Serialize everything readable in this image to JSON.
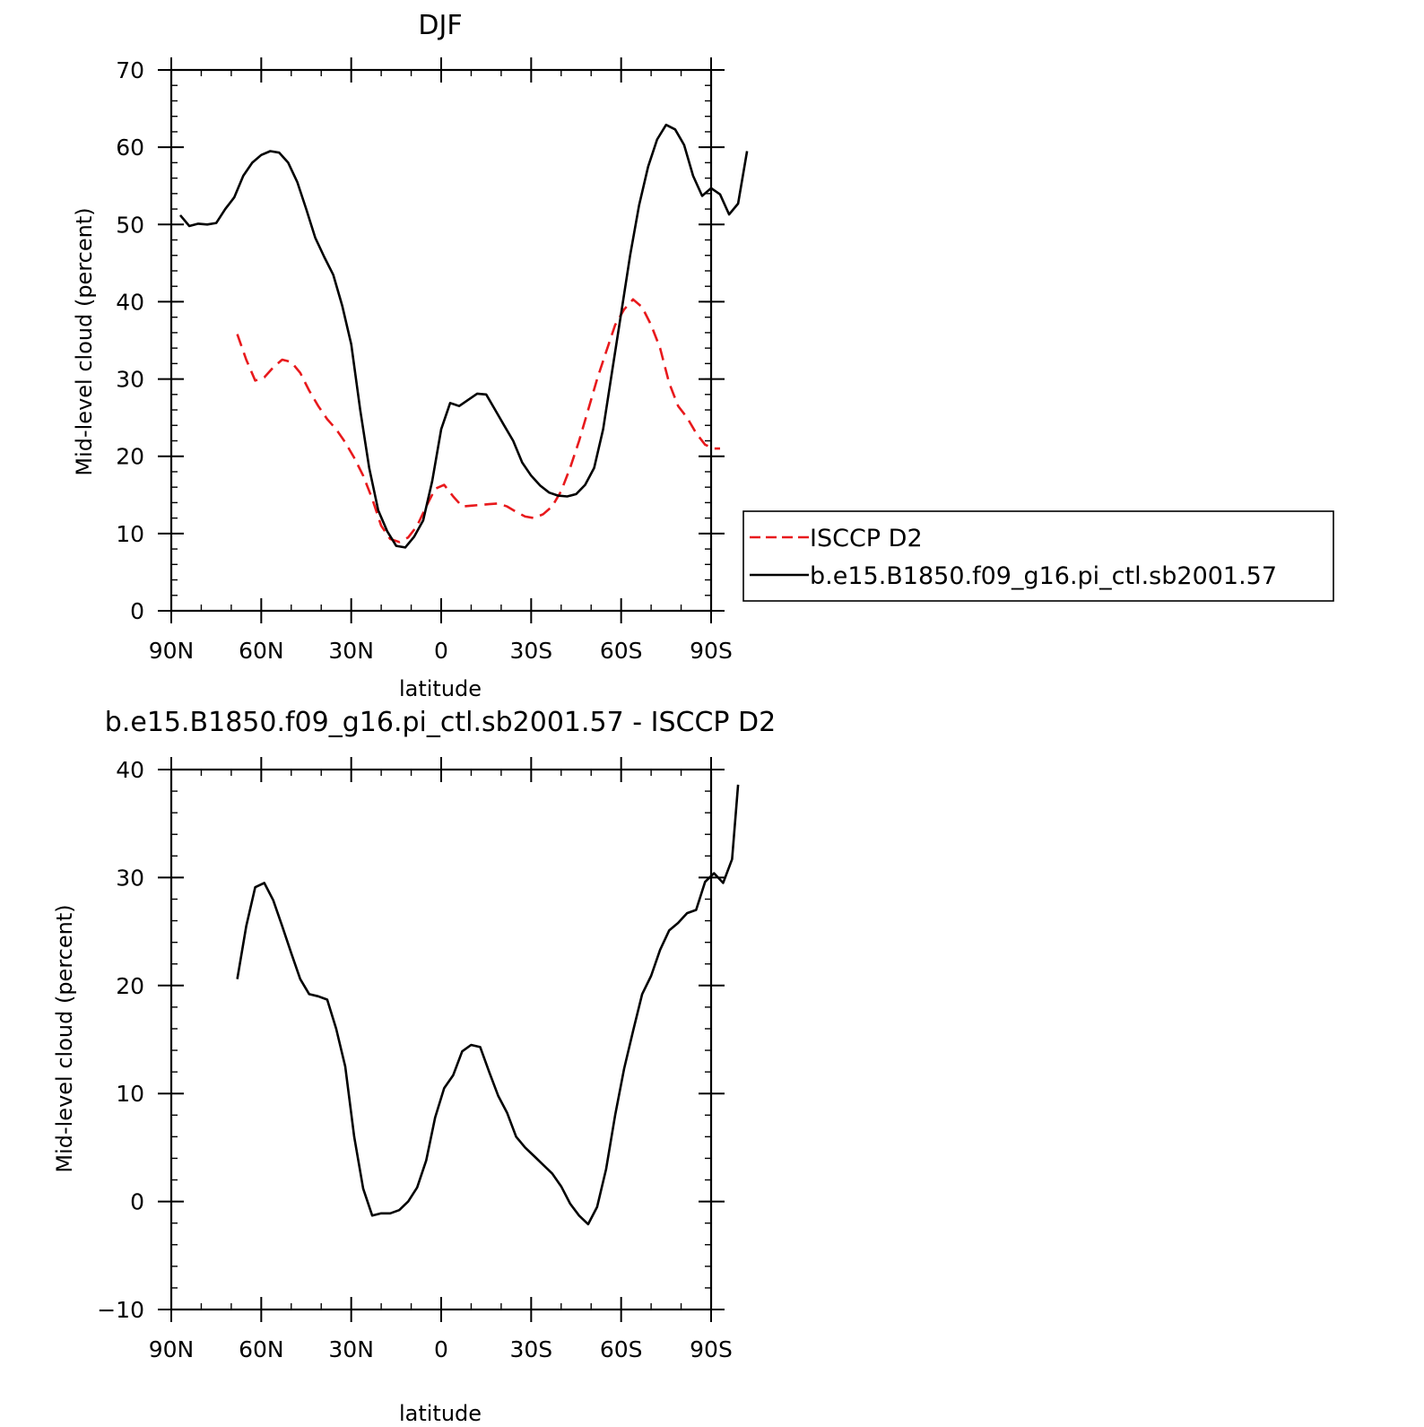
{
  "chart_data": [
    {
      "type": "line",
      "title": "DJF",
      "xlabel": "latitude",
      "ylabel": "Mid-level cloud (percent)",
      "xlim": [
        90,
        -90
      ],
      "ylim": [
        0,
        70
      ],
      "x_ticks": [
        {
          "value": 90,
          "label": "90N"
        },
        {
          "value": 60,
          "label": "60N"
        },
        {
          "value": 30,
          "label": "30N"
        },
        {
          "value": 0,
          "label": "0"
        },
        {
          "value": -30,
          "label": "30S"
        },
        {
          "value": -60,
          "label": "60S"
        },
        {
          "value": -90,
          "label": "90S"
        }
      ],
      "y_ticks": [
        0,
        10,
        20,
        30,
        40,
        50,
        60,
        70
      ],
      "legend_position": "right",
      "series": [
        {
          "name": "ISCCP D2",
          "color": "#e8191c",
          "dash": "dashed",
          "points": [
            [
              68,
              35.8
            ],
            [
              65,
              32.5
            ],
            [
              62,
              29.8
            ],
            [
              59,
              30.2
            ],
            [
              56,
              31.5
            ],
            [
              53,
              32.5
            ],
            [
              50,
              32.2
            ],
            [
              47,
              30.8
            ],
            [
              44,
              28.5
            ],
            [
              41,
              26.5
            ],
            [
              38,
              24.8
            ],
            [
              35,
              23.5
            ],
            [
              32,
              21.8
            ],
            [
              29,
              19.8
            ],
            [
              26,
              17.5
            ],
            [
              23,
              14.5
            ],
            [
              20,
              11.0
            ],
            [
              17,
              9.3
            ],
            [
              14,
              8.9
            ],
            [
              11,
              9.5
            ],
            [
              8,
              11.0
            ],
            [
              5,
              13.5
            ],
            [
              2,
              15.8
            ],
            [
              -1,
              16.3
            ],
            [
              -4,
              14.8
            ],
            [
              -7,
              13.5
            ],
            [
              -10,
              13.6
            ],
            [
              -13,
              13.7
            ],
            [
              -16,
              13.8
            ],
            [
              -19,
              13.9
            ],
            [
              -22,
              13.5
            ],
            [
              -25,
              12.8
            ],
            [
              -28,
              12.2
            ],
            [
              -31,
              12.0
            ],
            [
              -34,
              12.5
            ],
            [
              -37,
              13.5
            ],
            [
              -40,
              15.5
            ],
            [
              -43,
              18.5
            ],
            [
              -46,
              22.0
            ],
            [
              -49,
              26.0
            ],
            [
              -52,
              30.0
            ],
            [
              -55,
              33.5
            ],
            [
              -58,
              37.0
            ],
            [
              -61,
              39.0
            ],
            [
              -64,
              40.3
            ],
            [
              -67,
              39.3
            ],
            [
              -70,
              37.0
            ],
            [
              -73,
              34.0
            ],
            [
              -76,
              29.5
            ],
            [
              -79,
              26.5
            ],
            [
              -82,
              25.0
            ],
            [
              -85,
              23.0
            ],
            [
              -88,
              21.5
            ],
            [
              -91,
              21.0
            ],
            [
              -93,
              21.0
            ]
          ]
        },
        {
          "name": "b.e15.B1850.f09_g16.pi_ctl.sb2001.57",
          "color": "#000000",
          "dash": "solid",
          "points": [
            [
              87,
              51.2
            ],
            [
              84,
              49.8
            ],
            [
              81,
              50.1
            ],
            [
              78,
              50.0
            ],
            [
              75,
              50.2
            ],
            [
              72,
              52.0
            ],
            [
              69,
              53.5
            ],
            [
              66,
              56.3
            ],
            [
              63,
              58.0
            ],
            [
              60,
              59.0
            ],
            [
              57,
              59.5
            ],
            [
              54,
              59.3
            ],
            [
              51,
              58.0
            ],
            [
              48,
              55.5
            ],
            [
              45,
              52.0
            ],
            [
              42,
              48.3
            ],
            [
              39,
              45.8
            ],
            [
              36,
              43.5
            ],
            [
              33,
              39.5
            ],
            [
              30,
              34.5
            ],
            [
              27,
              26.0
            ],
            [
              24,
              18.5
            ],
            [
              21,
              13.0
            ],
            [
              18,
              10.3
            ],
            [
              15,
              8.4
            ],
            [
              12,
              8.2
            ],
            [
              9,
              9.6
            ],
            [
              6,
              11.7
            ],
            [
              3,
              16.8
            ],
            [
              0,
              23.5
            ],
            [
              -3,
              26.9
            ],
            [
              -6,
              26.5
            ],
            [
              -9,
              27.3
            ],
            [
              -12,
              28.1
            ],
            [
              -15,
              28.0
            ],
            [
              -18,
              26.0
            ],
            [
              -21,
              24.0
            ],
            [
              -24,
              22.0
            ],
            [
              -27,
              19.2
            ],
            [
              -30,
              17.5
            ],
            [
              -33,
              16.2
            ],
            [
              -36,
              15.3
            ],
            [
              -39,
              14.9
            ],
            [
              -42,
              14.8
            ],
            [
              -45,
              15.1
            ],
            [
              -48,
              16.3
            ],
            [
              -51,
              18.5
            ],
            [
              -54,
              23.5
            ],
            [
              -57,
              31.0
            ],
            [
              -60,
              38.5
            ],
            [
              -63,
              46.0
            ],
            [
              -66,
              52.5
            ],
            [
              -69,
              57.5
            ],
            [
              -72,
              61.0
            ],
            [
              -75,
              62.9
            ],
            [
              -78,
              62.3
            ],
            [
              -81,
              60.3
            ],
            [
              -84,
              56.3
            ],
            [
              -87,
              53.7
            ],
            [
              -90,
              54.7
            ],
            [
              -93,
              53.9
            ],
            [
              -96,
              51.3
            ],
            [
              -99,
              52.7
            ],
            [
              -102,
              59.5
            ]
          ]
        }
      ]
    },
    {
      "type": "line",
      "title": "b.e15.B1850.f09_g16.pi_ctl.sb2001.57 - ISCCP D2",
      "xlabel": "latitude",
      "ylabel": "Mid-level cloud (percent)",
      "xlim": [
        90,
        -90
      ],
      "ylim": [
        -10,
        40
      ],
      "x_ticks": [
        {
          "value": 90,
          "label": "90N"
        },
        {
          "value": 60,
          "label": "60N"
        },
        {
          "value": 30,
          "label": "30N"
        },
        {
          "value": 0,
          "label": "0"
        },
        {
          "value": -30,
          "label": "30S"
        },
        {
          "value": -60,
          "label": "60S"
        },
        {
          "value": -90,
          "label": "90S"
        }
      ],
      "y_ticks": [
        -10,
        0,
        10,
        20,
        30,
        40
      ],
      "series": [
        {
          "color": "#000000",
          "dash": "solid",
          "points": [
            [
              68,
              20.6
            ],
            [
              65,
              25.5
            ],
            [
              62,
              29.1
            ],
            [
              59,
              29.5
            ],
            [
              56,
              27.9
            ],
            [
              53,
              25.5
            ],
            [
              50,
              23.0
            ],
            [
              47,
              20.6
            ],
            [
              44,
              19.2
            ],
            [
              41,
              19.0
            ],
            [
              38,
              18.7
            ],
            [
              35,
              16.0
            ],
            [
              32,
              12.5
            ],
            [
              29,
              6.0
            ],
            [
              26,
              1.2
            ],
            [
              23,
              -1.3
            ],
            [
              20,
              -1.1
            ],
            [
              17,
              -1.1
            ],
            [
              14,
              -0.8
            ],
            [
              11,
              0.0
            ],
            [
              8,
              1.3
            ],
            [
              5,
              3.8
            ],
            [
              2,
              7.8
            ],
            [
              -1,
              10.5
            ],
            [
              -4,
              11.7
            ],
            [
              -7,
              13.9
            ],
            [
              -10,
              14.5
            ],
            [
              -13,
              14.3
            ],
            [
              -16,
              12.0
            ],
            [
              -19,
              9.8
            ],
            [
              -22,
              8.2
            ],
            [
              -25,
              6.0
            ],
            [
              -28,
              5.0
            ],
            [
              -31,
              4.2
            ],
            [
              -34,
              3.4
            ],
            [
              -37,
              2.6
            ],
            [
              -40,
              1.4
            ],
            [
              -43,
              -0.2
            ],
            [
              -46,
              -1.3
            ],
            [
              -49,
              -2.1
            ],
            [
              -52,
              -0.5
            ],
            [
              -55,
              3.0
            ],
            [
              -58,
              8.0
            ],
            [
              -61,
              12.3
            ],
            [
              -64,
              15.8
            ],
            [
              -67,
              19.2
            ],
            [
              -70,
              20.9
            ],
            [
              -73,
              23.3
            ],
            [
              -76,
              25.1
            ],
            [
              -79,
              25.8
            ],
            [
              -82,
              26.7
            ],
            [
              -85,
              27.0
            ],
            [
              -88,
              29.6
            ],
            [
              -91,
              30.4
            ],
            [
              -94,
              29.5
            ],
            [
              -97,
              31.7
            ],
            [
              -99,
              38.6
            ]
          ]
        }
      ]
    }
  ]
}
